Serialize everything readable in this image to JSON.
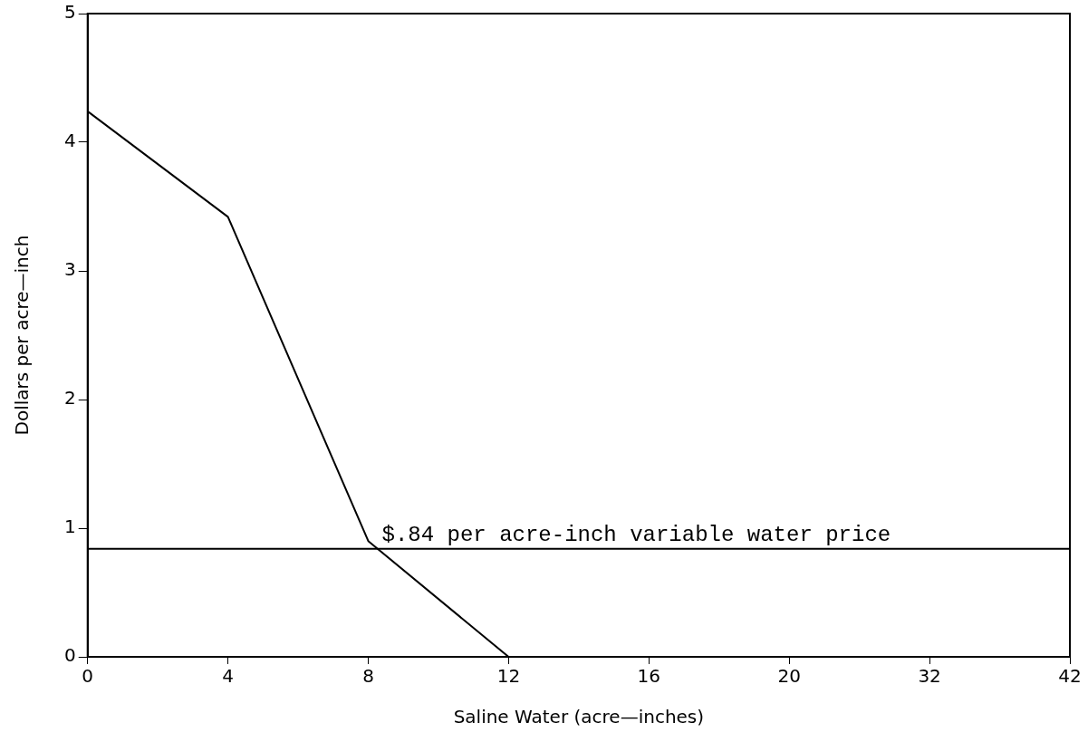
{
  "chart_data": {
    "type": "line",
    "xlabel": "Saline Water (acre—inches)",
    "ylabel": "Dollars per acre—inch",
    "categories": [
      "0",
      "4",
      "8",
      "12",
      "16",
      "20",
      "32",
      "42"
    ],
    "series": [
      {
        "color": "#000000",
        "values": [
          4.24,
          3.42,
          0.9,
          0,
          null,
          null,
          null,
          null
        ]
      }
    ],
    "ylim": [
      0,
      5
    ],
    "yticks": [
      0,
      1,
      2,
      3,
      4,
      5
    ],
    "grid": false,
    "legend": false,
    "marker": "none",
    "line_style": "solid",
    "ref_lines": [
      {
        "axis": "y",
        "value": 0.84,
        "label": "$.84 per acre-inch variable water price",
        "color": "#000000",
        "line_style": "solid"
      }
    ]
  }
}
